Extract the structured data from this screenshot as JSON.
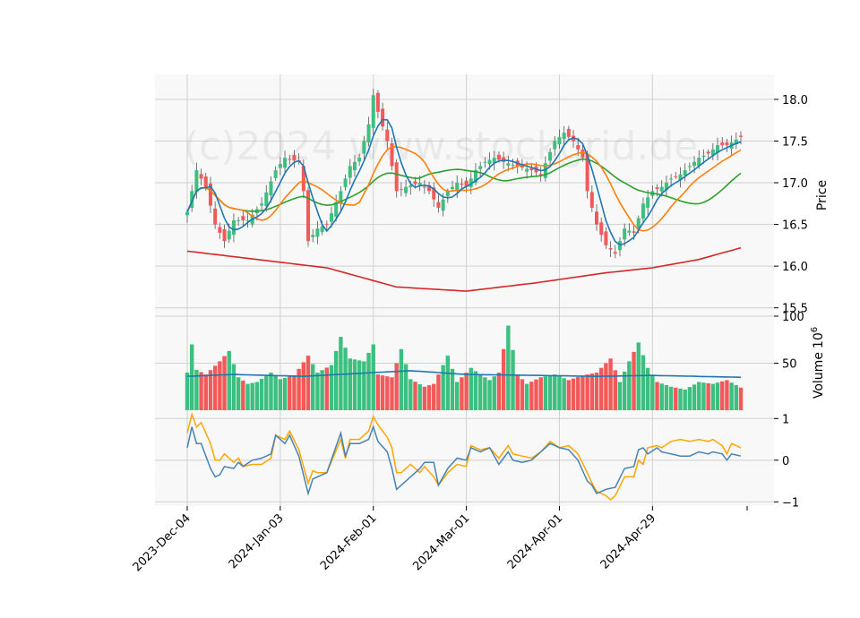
{
  "chart_data": {
    "type": "candlestick",
    "watermark": "(c)2024 www.stockgrid.de",
    "colors": {
      "panel_bg": "#f8f8f8",
      "grid": "#d0d0d0",
      "up": "#3dbf7f",
      "down": "#f25a5a",
      "ma_fast": "#1f77b4",
      "ma_mid": "#ff7f0e",
      "ma_slow": "#2ca02c",
      "ma_long": "#d62728",
      "volume_ma": "#1f77b4",
      "osc_1": "#4682b4",
      "osc_2": "#ffa500"
    },
    "x_ticks": [
      {
        "label": "2023-Dec-04",
        "index": 0
      },
      {
        "label": "2024-Jan-03",
        "index": 20
      },
      {
        "label": "2024-Feb-01",
        "index": 40
      },
      {
        "label": "2024-Mar-01",
        "index": 60
      },
      {
        "label": "2024-Apr-01",
        "index": 80
      },
      {
        "label": "2024-Apr-29",
        "index": 100
      }
    ],
    "x_count": 120,
    "price": {
      "ylabel": "Price",
      "ylim": [
        15.4,
        18.3
      ],
      "yticks": [
        {
          "value": 15.5,
          "label": "15.5"
        },
        {
          "value": 16.0,
          "label": "16.0"
        },
        {
          "value": 16.5,
          "label": "16.5"
        },
        {
          "value": 17.0,
          "label": "17.0"
        },
        {
          "value": 17.5,
          "label": "17.5"
        },
        {
          "value": 18.0,
          "label": "18.0"
        }
      ],
      "close_keypoints": [
        [
          0,
          16.65
        ],
        [
          2,
          17.15
        ],
        [
          4,
          16.95
        ],
        [
          6,
          16.5
        ],
        [
          8,
          16.3
        ],
        [
          10,
          16.55
        ],
        [
          13,
          16.55
        ],
        [
          16,
          16.75
        ],
        [
          19,
          17.15
        ],
        [
          21,
          17.3
        ],
        [
          24,
          17.25
        ],
        [
          25,
          16.9
        ],
        [
          26,
          16.3
        ],
        [
          28,
          16.45
        ],
        [
          30,
          16.5
        ],
        [
          33,
          16.9
        ],
        [
          35,
          17.2
        ],
        [
          37,
          17.3
        ],
        [
          39,
          17.7
        ],
        [
          40,
          18.05
        ],
        [
          41,
          17.85
        ],
        [
          43,
          17.5
        ],
        [
          45,
          16.9
        ],
        [
          47,
          16.95
        ],
        [
          50,
          17.0
        ],
        [
          52,
          16.9
        ],
        [
          54,
          16.7
        ],
        [
          56,
          16.9
        ],
        [
          58,
          17.0
        ],
        [
          60,
          16.95
        ],
        [
          62,
          17.15
        ],
        [
          64,
          17.25
        ],
        [
          66,
          17.3
        ],
        [
          68,
          17.25
        ],
        [
          71,
          17.2
        ],
        [
          74,
          17.15
        ],
        [
          76,
          17.1
        ],
        [
          79,
          17.5
        ],
        [
          81,
          17.6
        ],
        [
          83,
          17.5
        ],
        [
          85,
          17.3
        ],
        [
          86,
          16.9
        ],
        [
          88,
          16.5
        ],
        [
          90,
          16.25
        ],
        [
          92,
          16.15
        ],
        [
          94,
          16.45
        ],
        [
          96,
          16.4
        ],
        [
          98,
          16.75
        ],
        [
          100,
          16.9
        ],
        [
          102,
          16.95
        ],
        [
          104,
          17.05
        ],
        [
          106,
          17.1
        ],
        [
          108,
          17.2
        ],
        [
          110,
          17.3
        ],
        [
          112,
          17.35
        ],
        [
          114,
          17.45
        ],
        [
          116,
          17.45
        ],
        [
          119,
          17.55
        ]
      ],
      "ma_long": [
        [
          0,
          16.18
        ],
        [
          30,
          15.98
        ],
        [
          45,
          15.75
        ],
        [
          60,
          15.7
        ],
        [
          75,
          15.8
        ],
        [
          90,
          15.92
        ],
        [
          100,
          15.98
        ],
        [
          110,
          16.08
        ],
        [
          119,
          16.22
        ]
      ]
    },
    "volume": {
      "ylabel": "Volume",
      "ylabel_exponent": "6",
      "ylim": [
        0,
        100
      ],
      "yticks": [
        {
          "value": 50,
          "label": "50"
        },
        {
          "value": 100,
          "label": "100"
        }
      ],
      "keypoints": [
        [
          0,
          40
        ],
        [
          1,
          70
        ],
        [
          2,
          43
        ],
        [
          4,
          38
        ],
        [
          7,
          52
        ],
        [
          9,
          63
        ],
        [
          11,
          35
        ],
        [
          13,
          28
        ],
        [
          15,
          30
        ],
        [
          18,
          40
        ],
        [
          20,
          33
        ],
        [
          23,
          37
        ],
        [
          26,
          58
        ],
        [
          28,
          40
        ],
        [
          31,
          48
        ],
        [
          33,
          78
        ],
        [
          35,
          55
        ],
        [
          38,
          52
        ],
        [
          40,
          70
        ],
        [
          41,
          38
        ],
        [
          44,
          35
        ],
        [
          46,
          65
        ],
        [
          48,
          33
        ],
        [
          51,
          25
        ],
        [
          53,
          28
        ],
        [
          56,
          58
        ],
        [
          58,
          30
        ],
        [
          61,
          45
        ],
        [
          63,
          38
        ],
        [
          65,
          32
        ],
        [
          67,
          40
        ],
        [
          69,
          90
        ],
        [
          71,
          38
        ],
        [
          73,
          28
        ],
        [
          76,
          35
        ],
        [
          79,
          38
        ],
        [
          82,
          32
        ],
        [
          85,
          37
        ],
        [
          88,
          40
        ],
        [
          91,
          55
        ],
        [
          93,
          30
        ],
        [
          95,
          52
        ],
        [
          97,
          72
        ],
        [
          99,
          45
        ],
        [
          101,
          30
        ],
        [
          104,
          25
        ],
        [
          107,
          22
        ],
        [
          110,
          30
        ],
        [
          113,
          28
        ],
        [
          116,
          32
        ],
        [
          119,
          24
        ]
      ],
      "ma": [
        [
          0,
          36
        ],
        [
          10,
          38
        ],
        [
          25,
          36
        ],
        [
          40,
          40
        ],
        [
          48,
          42
        ],
        [
          60,
          38
        ],
        [
          75,
          37
        ],
        [
          88,
          36
        ],
        [
          100,
          37
        ],
        [
          119,
          35
        ]
      ]
    },
    "oscillator": {
      "ylim": [
        -1.1,
        1.2
      ],
      "yticks": [
        {
          "value": -1,
          "label": "−1"
        },
        {
          "value": 0,
          "label": "0"
        },
        {
          "value": 1,
          "label": "1"
        }
      ],
      "series_1": [
        [
          0,
          0.3
        ],
        [
          1,
          0.8
        ],
        [
          2,
          0.4
        ],
        [
          3,
          0.4
        ],
        [
          5,
          -0.2
        ],
        [
          6,
          -0.4
        ],
        [
          7,
          -0.35
        ],
        [
          8,
          -0.15
        ],
        [
          10,
          -0.2
        ],
        [
          11,
          -0.05
        ],
        [
          12,
          -0.15
        ],
        [
          14,
          0.0
        ],
        [
          16,
          0.05
        ],
        [
          18,
          0.15
        ],
        [
          19,
          0.6
        ],
        [
          21,
          0.4
        ],
        [
          22,
          0.6
        ],
        [
          24,
          0.1
        ],
        [
          26,
          -0.8
        ],
        [
          27,
          -0.45
        ],
        [
          28,
          -0.4
        ],
        [
          30,
          -0.3
        ],
        [
          33,
          0.65
        ],
        [
          34,
          0.1
        ],
        [
          35,
          0.4
        ],
        [
          37,
          0.4
        ],
        [
          39,
          0.5
        ],
        [
          40,
          0.8
        ],
        [
          41,
          0.45
        ],
        [
          43,
          0.2
        ],
        [
          44,
          -0.2
        ],
        [
          45,
          -0.7
        ],
        [
          46,
          -0.6
        ],
        [
          48,
          -0.4
        ],
        [
          50,
          -0.2
        ],
        [
          51,
          -0.05
        ],
        [
          53,
          -0.05
        ],
        [
          54,
          -0.6
        ],
        [
          56,
          -0.2
        ],
        [
          58,
          0.05
        ],
        [
          60,
          0.0
        ],
        [
          61,
          0.3
        ],
        [
          63,
          0.2
        ],
        [
          65,
          0.3
        ],
        [
          67,
          -0.1
        ],
        [
          69,
          0.2
        ],
        [
          70,
          0.0
        ],
        [
          72,
          -0.05
        ],
        [
          74,
          0.0
        ],
        [
          76,
          0.2
        ],
        [
          78,
          0.4
        ],
        [
          80,
          0.3
        ],
        [
          82,
          0.25
        ],
        [
          84,
          0.0
        ],
        [
          86,
          -0.5
        ],
        [
          87,
          -0.6
        ],
        [
          88,
          -0.8
        ],
        [
          90,
          -0.7
        ],
        [
          92,
          -0.65
        ],
        [
          94,
          -0.2
        ],
        [
          96,
          -0.15
        ],
        [
          97,
          0.25
        ],
        [
          98,
          0.3
        ],
        [
          99,
          0.15
        ],
        [
          101,
          0.3
        ],
        [
          102,
          0.2
        ],
        [
          104,
          0.15
        ],
        [
          106,
          0.1
        ],
        [
          108,
          0.1
        ],
        [
          110,
          0.2
        ],
        [
          112,
          0.15
        ],
        [
          113,
          0.2
        ],
        [
          115,
          0.15
        ],
        [
          116,
          0.0
        ],
        [
          117,
          0.15
        ],
        [
          119,
          0.1
        ]
      ],
      "series_2": [
        [
          0,
          0.65
        ],
        [
          1,
          1.1
        ],
        [
          2,
          0.8
        ],
        [
          3,
          0.9
        ],
        [
          5,
          0.4
        ],
        [
          6,
          0.0
        ],
        [
          7,
          0.0
        ],
        [
          8,
          0.15
        ],
        [
          10,
          -0.05
        ],
        [
          11,
          0.05
        ],
        [
          12,
          -0.15
        ],
        [
          14,
          -0.1
        ],
        [
          16,
          -0.1
        ],
        [
          18,
          0.05
        ],
        [
          19,
          0.6
        ],
        [
          21,
          0.5
        ],
        [
          22,
          0.7
        ],
        [
          24,
          0.25
        ],
        [
          26,
          -0.55
        ],
        [
          27,
          -0.25
        ],
        [
          28,
          -0.3
        ],
        [
          30,
          -0.3
        ],
        [
          33,
          0.5
        ],
        [
          34,
          0.05
        ],
        [
          35,
          0.5
        ],
        [
          37,
          0.5
        ],
        [
          39,
          0.7
        ],
        [
          40,
          1.05
        ],
        [
          41,
          0.85
        ],
        [
          43,
          0.55
        ],
        [
          44,
          0.3
        ],
        [
          45,
          -0.3
        ],
        [
          46,
          -0.3
        ],
        [
          48,
          -0.1
        ],
        [
          50,
          -0.3
        ],
        [
          51,
          -0.15
        ],
        [
          53,
          -0.4
        ],
        [
          54,
          -0.6
        ],
        [
          56,
          -0.3
        ],
        [
          58,
          -0.1
        ],
        [
          60,
          -0.15
        ],
        [
          61,
          0.35
        ],
        [
          63,
          0.25
        ],
        [
          65,
          0.3
        ],
        [
          67,
          0.05
        ],
        [
          69,
          0.35
        ],
        [
          70,
          0.15
        ],
        [
          72,
          0.1
        ],
        [
          74,
          0.05
        ],
        [
          76,
          0.2
        ],
        [
          78,
          0.45
        ],
        [
          80,
          0.3
        ],
        [
          82,
          0.35
        ],
        [
          84,
          0.15
        ],
        [
          86,
          -0.3
        ],
        [
          87,
          -0.55
        ],
        [
          88,
          -0.75
        ],
        [
          90,
          -0.85
        ],
        [
          91,
          -0.95
        ],
        [
          92,
          -0.85
        ],
        [
          94,
          -0.4
        ],
        [
          96,
          -0.4
        ],
        [
          97,
          0.0
        ],
        [
          98,
          -0.1
        ],
        [
          99,
          0.3
        ],
        [
          101,
          0.35
        ],
        [
          102,
          0.3
        ],
        [
          104,
          0.45
        ],
        [
          106,
          0.5
        ],
        [
          108,
          0.45
        ],
        [
          110,
          0.5
        ],
        [
          112,
          0.45
        ],
        [
          113,
          0.5
        ],
        [
          115,
          0.35
        ],
        [
          116,
          0.15
        ],
        [
          117,
          0.4
        ],
        [
          119,
          0.3
        ]
      ]
    }
  }
}
